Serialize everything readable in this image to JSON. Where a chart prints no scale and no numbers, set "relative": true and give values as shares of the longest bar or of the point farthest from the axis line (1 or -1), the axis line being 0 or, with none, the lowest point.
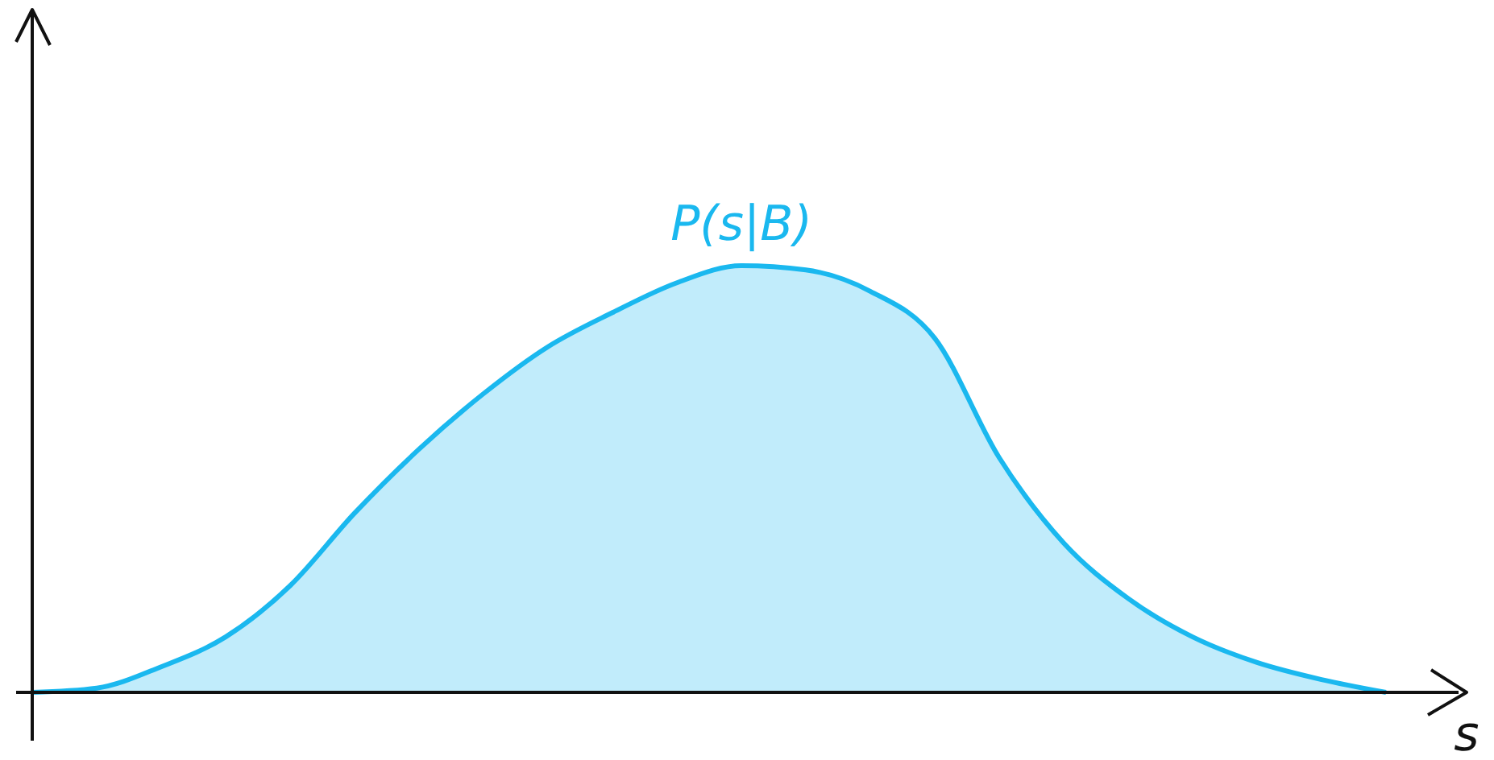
{
  "chart_data": {
    "type": "area",
    "relative": true,
    "xlabel": "s",
    "categories": [
      null,
      null,
      null,
      null,
      null,
      null,
      null,
      null,
      null,
      null,
      null,
      null,
      null,
      null,
      null,
      null,
      null,
      null,
      null,
      null,
      null,
      null
    ],
    "series": [
      {
        "name": "P(s|B)",
        "color": "#1ab8ef",
        "values": [
          0,
          0.01,
          0.06,
          0.13,
          0.25,
          0.42,
          0.57,
          0.7,
          0.81,
          0.89,
          0.96,
          1,
          0.99,
          0.94,
          0.83,
          0.55,
          0.35,
          0.22,
          0.13,
          0.07,
          0.03,
          0
        ]
      }
    ]
  }
}
